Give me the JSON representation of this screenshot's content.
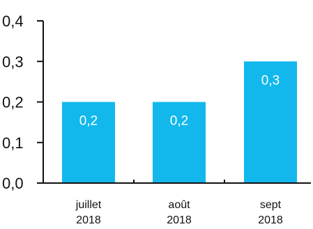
{
  "chart_data": {
    "type": "bar",
    "categories": [
      [
        "juillet",
        "2018"
      ],
      [
        "août",
        "2018"
      ],
      [
        "sept",
        "2018"
      ]
    ],
    "values": [
      0.2,
      0.2,
      0.3
    ],
    "data_labels": [
      "0,2",
      "0,2",
      "0,3"
    ],
    "y_ticks": [
      {
        "value": 0.0,
        "label": "0,0"
      },
      {
        "value": 0.1,
        "label": "0,1"
      },
      {
        "value": 0.2,
        "label": "0,2"
      },
      {
        "value": 0.3,
        "label": "0,3"
      },
      {
        "value": 0.4,
        "label": "0,4"
      }
    ],
    "ylim": [
      0,
      0.4
    ],
    "title": "",
    "xlabel": "",
    "ylabel": "",
    "grid": false,
    "bar_color": "#12B8EC",
    "axis_color": "#111111"
  }
}
